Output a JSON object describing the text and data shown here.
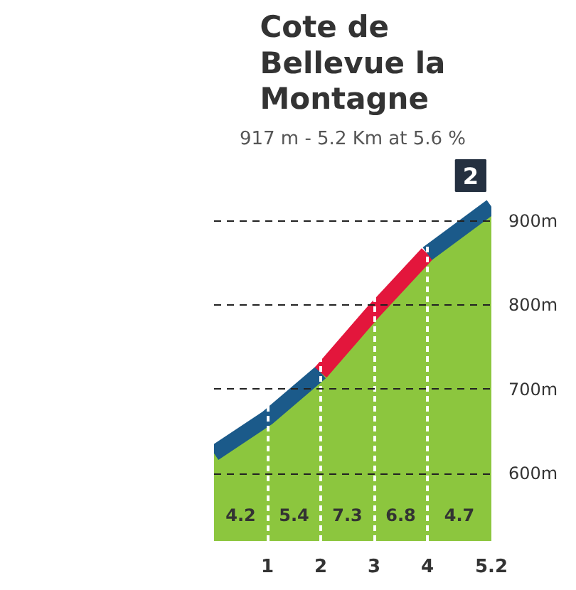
{
  "chart_data": {
    "type": "area",
    "title": "Cote de Bellevue la Montagne",
    "subtitle": "917 m - 5.2 Km at 5.6 %",
    "x": [
      0,
      1,
      2,
      3,
      4,
      5.2
    ],
    "series": [
      {
        "color": "#8cc63e",
        "values": [
          624,
          666,
          720,
          793,
          861,
          917
        ]
      },
      {
        "type": "line",
        "color": "#1b5a8a",
        "x": [
          0,
          1,
          2
        ],
        "values": [
          624,
          666,
          720
        ]
      },
      {
        "type": "line",
        "color": "#e3163c",
        "x": [
          2,
          3,
          4
        ],
        "values": [
          720,
          793,
          861
        ]
      },
      {
        "type": "line",
        "color": "#1b5a8a",
        "x": [
          4,
          5.2
        ],
        "values": [
          861,
          917
        ]
      }
    ],
    "xlim": [
      0,
      5.2
    ],
    "xticks": [
      1,
      2,
      3,
      4,
      5.2
    ],
    "ylim": [
      520,
      930
    ],
    "yticks": [
      {
        "value": 600,
        "label": "600m"
      },
      {
        "value": 700,
        "label": "700m"
      },
      {
        "value": 800,
        "label": "800m"
      },
      {
        "value": 900,
        "label": "900m"
      }
    ],
    "grid": true,
    "annotations": [
      "4.2",
      "5.4",
      "7.3",
      "6.8",
      "4.7",
      "2"
    ]
  }
}
